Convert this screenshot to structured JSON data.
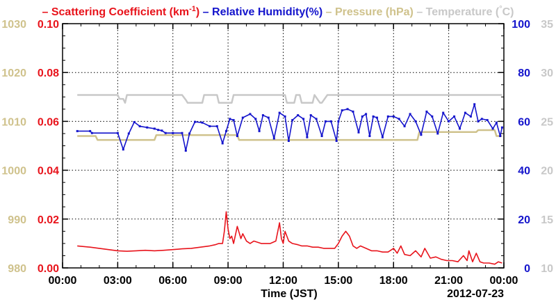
{
  "chart_data": {
    "type": "line",
    "date_label": "2012-07-23",
    "xlabel": "Time (JST)",
    "x_ticks": [
      "00:00",
      "03:00",
      "06:00",
      "09:00",
      "12:00",
      "15:00",
      "18:00",
      "21:00",
      "00:00"
    ],
    "x_range_hours": [
      0,
      24
    ],
    "grid": true,
    "legend": {
      "placement": "top",
      "items": [
        {
          "prefix": "– ",
          "text": "Scattering Coefficient (km",
          "sup": "-1",
          "suffix": ")",
          "color": "#e8131b"
        },
        {
          "prefix": " – ",
          "text": "Relative Humidity(%)",
          "sup": "",
          "suffix": "",
          "color": "#1414cc"
        },
        {
          "prefix": " – ",
          "text": "Pressure (hPa)",
          "sup": "",
          "suffix": "",
          "color": "#cfc28c"
        },
        {
          "prefix": " – ",
          "text": "Temperature (",
          "sup": "°",
          "suffix": "C)",
          "color": "#c8c8c8"
        }
      ]
    },
    "axes": {
      "scattering": {
        "side": "left-inner",
        "range": [
          0,
          0.1
        ],
        "ticks": [
          "0.00",
          "0.02",
          "0.04",
          "0.06",
          "0.08",
          "0.10"
        ],
        "color": "#e8131b"
      },
      "pressure": {
        "side": "left-outer",
        "range": [
          980,
          1030
        ],
        "ticks": [
          "980",
          "990",
          "1000",
          "1010",
          "1020",
          "1030"
        ],
        "color": "#cfc28c"
      },
      "humidity": {
        "side": "right-inner",
        "range": [
          0,
          100
        ],
        "ticks": [
          "0",
          "20",
          "40",
          "60",
          "80",
          "100"
        ],
        "color": "#1414cc"
      },
      "temperature": {
        "side": "right-outer",
        "range": [
          10,
          35
        ],
        "ticks": [
          "10",
          "15",
          "20",
          "25",
          "30",
          "35"
        ],
        "color": "#c8c8c8"
      }
    },
    "series": [
      {
        "key": "temperature",
        "axis": "temperature",
        "color": "#c8c8c8",
        "x": [
          0.8,
          3.0,
          3.1,
          3.3,
          3.4,
          3.5,
          6.5,
          6.7,
          6.8,
          7.6,
          7.7,
          8.4,
          8.5,
          9.2,
          9.3,
          12.1,
          12.2,
          12.6,
          12.7,
          12.9,
          13.0,
          13.6,
          13.7,
          14.0,
          14.1,
          14.4,
          14.5,
          23.9
        ],
        "y": [
          27.7,
          27.7,
          27.3,
          27.3,
          26.9,
          27.7,
          27.7,
          27.2,
          26.9,
          26.9,
          27.7,
          27.7,
          26.9,
          26.9,
          27.7,
          27.7,
          26.9,
          26.9,
          27.7,
          27.7,
          26.9,
          26.9,
          27.7,
          26.9,
          26.9,
          27.7,
          27.7,
          27.7
        ]
      },
      {
        "key": "pressure",
        "axis": "pressure",
        "color": "#cfc28c",
        "x": [
          0.8,
          1.8,
          1.9,
          5.0,
          5.1,
          9.5,
          9.6,
          15.2,
          15.3,
          19.3,
          19.4,
          22.5,
          22.6,
          23.5,
          23.6,
          23.9
        ],
        "y": [
          1007.0,
          1007.0,
          1006.2,
          1006.2,
          1007.2,
          1007.2,
          1006.2,
          1006.2,
          1006.2,
          1006.2,
          1007.8,
          1007.8,
          1008.2,
          1008.2,
          1007.0,
          1007.0
        ],
        "step": true
      },
      {
        "key": "humidity",
        "axis": "humidity",
        "color": "#1414cc",
        "markers": true,
        "x": [
          0.8,
          1.5,
          1.6,
          3.0,
          3.3,
          3.6,
          3.9,
          4.2,
          4.6,
          5.0,
          5.2,
          5.4,
          5.6,
          6.0,
          6.5,
          6.7,
          6.9,
          7.2,
          7.6,
          8.0,
          8.4,
          8.7,
          8.9,
          9.1,
          9.3,
          9.5,
          9.8,
          10.2,
          10.5,
          10.7,
          10.9,
          11.2,
          11.5,
          11.8,
          12.1,
          12.3,
          12.5,
          12.8,
          13.1,
          13.3,
          13.5,
          13.8,
          14.1,
          14.3,
          14.6,
          14.9,
          15.0,
          15.2,
          15.5,
          15.8,
          16.1,
          16.3,
          16.5,
          16.7,
          16.9,
          17.1,
          17.4,
          17.7,
          18.0,
          18.3,
          18.6,
          18.9,
          19.2,
          19.5,
          19.8,
          20.1,
          20.4,
          20.7,
          21.0,
          21.3,
          21.6,
          21.9,
          22.2,
          22.4,
          22.6,
          22.8,
          23.1,
          23.4,
          23.6,
          23.8,
          23.9
        ],
        "y": [
          56.0,
          56.0,
          55.2,
          55.2,
          48.5,
          55.0,
          59.7,
          58.0,
          57.5,
          57.0,
          56.5,
          56.2,
          55.2,
          55.2,
          55.2,
          48.0,
          55.0,
          59.8,
          59.5,
          58.0,
          58.0,
          51.0,
          56.0,
          61.0,
          60.5,
          54.0,
          61.5,
          63.0,
          61.0,
          56.0,
          62.5,
          61.5,
          53.0,
          63.5,
          62.0,
          52.0,
          60.5,
          62.5,
          61.0,
          53.5,
          62.5,
          61.0,
          54.0,
          60.0,
          60.0,
          52.0,
          60.0,
          64.5,
          65.0,
          64.0,
          55.5,
          62.0,
          63.0,
          54.0,
          62.0,
          61.5,
          53.5,
          62.0,
          62.0,
          61.0,
          58.0,
          63.0,
          60.0,
          54.5,
          64.0,
          62.0,
          55.0,
          63.5,
          60.0,
          62.0,
          57.0,
          63.5,
          62.0,
          67.0,
          60.0,
          61.0,
          60.5,
          57.0,
          59.5,
          54.0,
          57.5
        ]
      },
      {
        "key": "scattering",
        "axis": "scattering",
        "color": "#e8131b",
        "x": [
          0.8,
          1.5,
          2.0,
          2.5,
          3.0,
          3.5,
          4.0,
          4.5,
          5.0,
          5.5,
          6.0,
          6.5,
          7.0,
          7.5,
          8.0,
          8.3,
          8.5,
          8.7,
          8.8,
          8.9,
          9.0,
          9.1,
          9.2,
          9.3,
          9.5,
          9.7,
          9.8,
          10.0,
          10.2,
          10.4,
          10.6,
          10.8,
          11.0,
          11.3,
          11.6,
          11.8,
          11.9,
          12.0,
          12.1,
          12.3,
          12.5,
          12.8,
          13.0,
          13.3,
          13.6,
          13.9,
          14.2,
          14.5,
          14.8,
          15.0,
          15.2,
          15.4,
          15.6,
          15.8,
          16.0,
          16.2,
          16.5,
          16.8,
          17.1,
          17.4,
          17.7,
          18.0,
          18.2,
          18.4,
          18.6,
          18.9,
          19.2,
          19.5,
          19.7,
          20.0,
          20.3,
          20.6,
          20.9,
          21.2,
          21.5,
          21.8,
          22.0,
          22.1,
          22.3,
          22.5,
          22.7,
          22.9,
          23.2,
          23.5,
          23.7,
          23.9
        ],
        "y": [
          0.009,
          0.0085,
          0.008,
          0.0075,
          0.007,
          0.0068,
          0.007,
          0.0072,
          0.007,
          0.0072,
          0.0075,
          0.0078,
          0.008,
          0.0085,
          0.009,
          0.0095,
          0.01,
          0.01,
          0.015,
          0.023,
          0.016,
          0.012,
          0.013,
          0.01,
          0.017,
          0.012,
          0.014,
          0.011,
          0.01,
          0.011,
          0.0105,
          0.01,
          0.01,
          0.01,
          0.011,
          0.0185,
          0.012,
          0.01,
          0.015,
          0.011,
          0.01,
          0.0095,
          0.009,
          0.009,
          0.0085,
          0.0085,
          0.008,
          0.008,
          0.008,
          0.01,
          0.013,
          0.015,
          0.013,
          0.009,
          0.008,
          0.009,
          0.008,
          0.007,
          0.007,
          0.0065,
          0.0065,
          0.008,
          0.006,
          0.009,
          0.0055,
          0.005,
          0.007,
          0.0045,
          0.008,
          0.004,
          0.0045,
          0.0035,
          0.003,
          0.003,
          0.0025,
          0.005,
          0.003,
          0.007,
          0.0025,
          0.006,
          0.0025,
          0.002,
          0.002,
          0.0015,
          0.0025,
          0.002
        ]
      }
    ]
  }
}
